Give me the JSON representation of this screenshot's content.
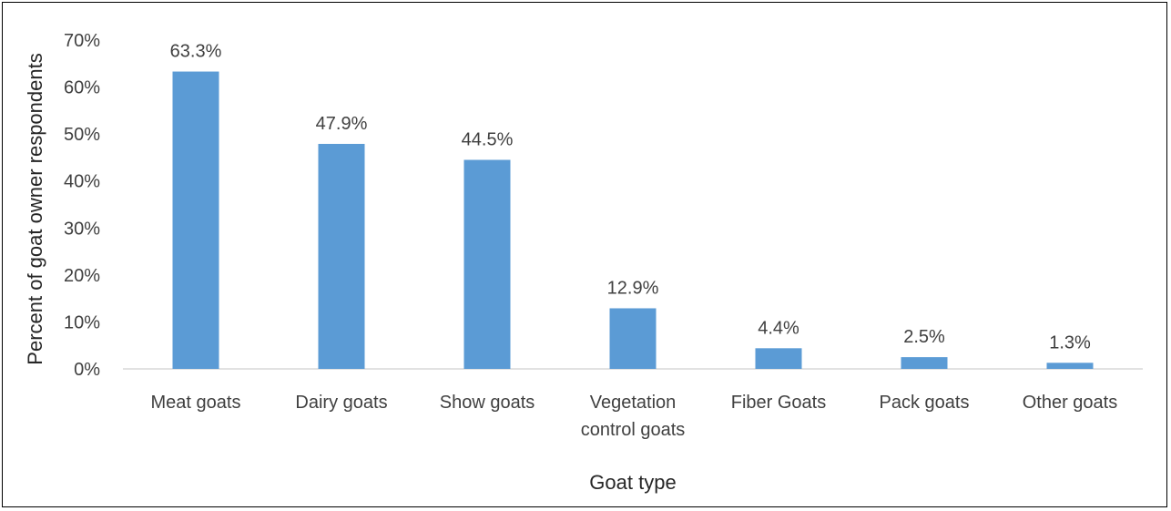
{
  "chart_data": {
    "type": "bar",
    "xlabel": "Goat type",
    "ylabel": "Percent of goat owner respondents",
    "ylim": [
      0,
      70
    ],
    "yticks": [
      "0%",
      "10%",
      "20%",
      "30%",
      "40%",
      "50%",
      "60%",
      "70%"
    ],
    "categories": [
      [
        "Meat goats"
      ],
      [
        "Dairy goats"
      ],
      [
        "Show goats"
      ],
      [
        "Vegetation",
        "control goats"
      ],
      [
        "Fiber Goats"
      ],
      [
        "Pack goats"
      ],
      [
        "Other goats"
      ]
    ],
    "values": [
      63.3,
      47.9,
      44.5,
      12.9,
      4.4,
      2.5,
      1.3
    ],
    "data_labels": [
      "63.3%",
      "47.9%",
      "44.5%",
      "12.9%",
      "4.4%",
      "2.5%",
      "1.3%"
    ],
    "grid": false,
    "legend": "none",
    "bar_color": "#5B9BD5"
  }
}
